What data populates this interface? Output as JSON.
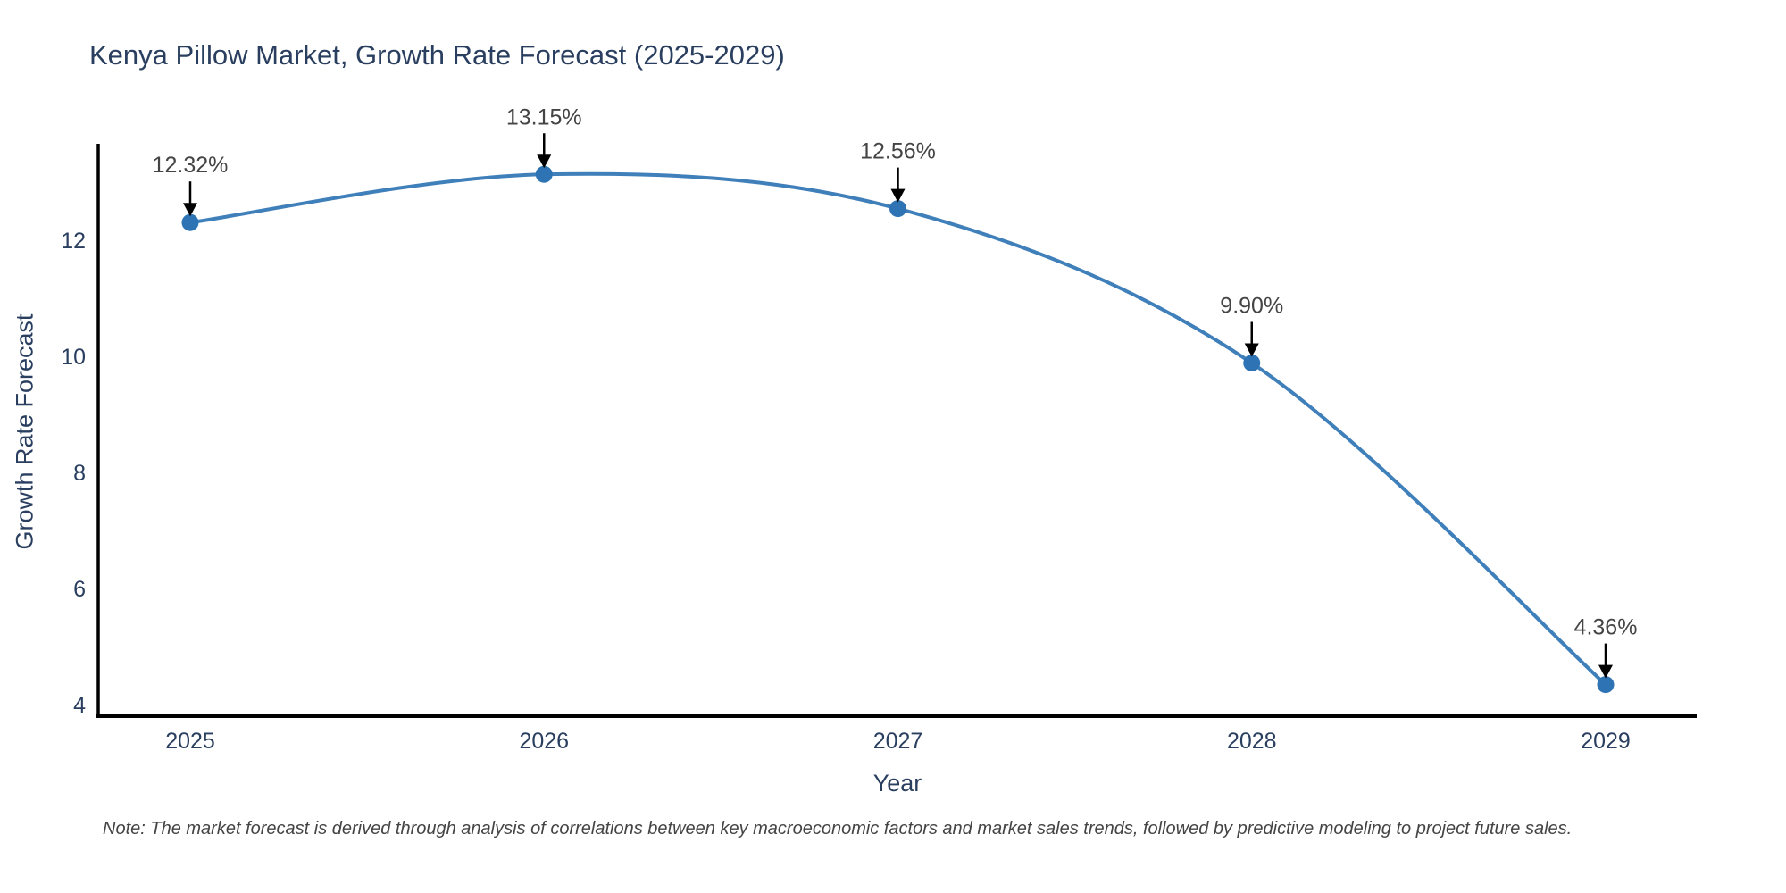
{
  "header": {
    "title": "Kenya Pillow Market, Growth Rate Forecast (2025-2029)"
  },
  "footnote": {
    "text": "Note: The market forecast is derived through analysis of correlations between key macroeconomic factors and market sales trends, followed by predictive modeling to project future sales."
  },
  "chart_data": {
    "type": "line",
    "title": "Kenya Pillow Market, Growth Rate Forecast (2025-2029)",
    "xlabel": "Year",
    "ylabel": "Growth Rate Forecast",
    "x": [
      2025,
      2026,
      2027,
      2028,
      2029
    ],
    "series": [
      {
        "name": "Growth Rate Forecast",
        "values": [
          12.32,
          13.15,
          12.56,
          9.9,
          4.36
        ],
        "point_labels": [
          "12.32%",
          "13.15%",
          "12.56%",
          "9.90%",
          "4.36%"
        ]
      }
    ],
    "x_tick_labels": [
      "2025",
      "2026",
      "2027",
      "2028",
      "2029"
    ],
    "y_tick_labels": [
      "4",
      "6",
      "8",
      "10",
      "12"
    ],
    "y_ticks": [
      4,
      6,
      8,
      10,
      12
    ],
    "ylim": [
      3.82,
      13.83
    ],
    "xlim": [
      2024.73,
      2029.27
    ],
    "line_shape": "spline",
    "grid": false,
    "legend_position": "none",
    "annotations_have_arrows": true,
    "colors": {
      "line": "#3f7fba",
      "marker": "#2e74b5",
      "arrow": "#000000",
      "axis_line": "#000000",
      "title_text": "#2a3f5f",
      "tick_text": "#2a3f5f",
      "annotation_text": "#444444",
      "note_text": "#444444",
      "background": "#ffffff"
    }
  }
}
